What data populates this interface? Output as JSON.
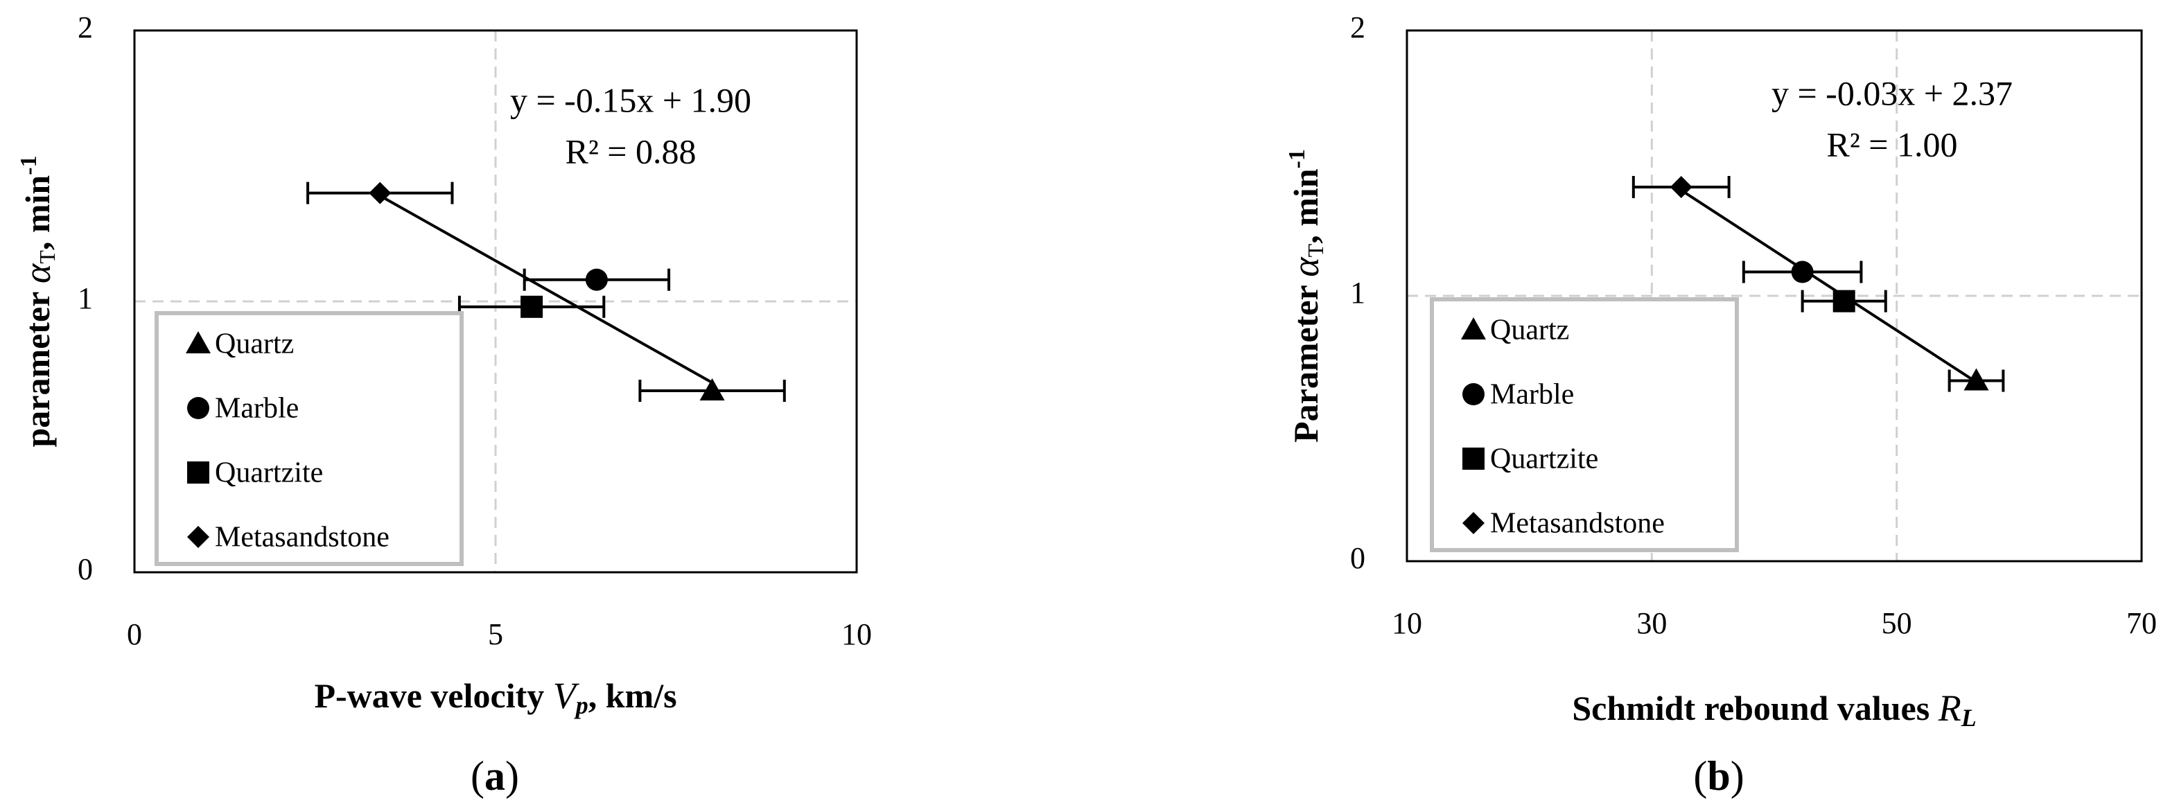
{
  "chart_data": [
    {
      "type": "scatter",
      "caption": "a",
      "xlabel": [
        "P-wave velocity ",
        "V",
        "p",
        ", km/s"
      ],
      "ylabel": [
        "parameter ",
        "α",
        "T",
        ", min",
        "-1"
      ],
      "xlim": [
        0,
        10
      ],
      "xticks": [
        0,
        5,
        10
      ],
      "ylim": [
        0,
        2
      ],
      "yticks": [
        0,
        1,
        2
      ],
      "grid": true,
      "legend": "lower left",
      "trendline": {
        "slope": -0.15,
        "intercept": 1.9,
        "equation": "y = -0.15x + 1.90",
        "r2": "R² = 0.88"
      },
      "series": [
        {
          "name": "Quartz",
          "marker": "triangle",
          "color": "#000000",
          "x": [
            8.0
          ],
          "y": [
            0.67
          ],
          "xerr": [
            1.0
          ]
        },
        {
          "name": "Marble",
          "marker": "circle",
          "color": "#000000",
          "x": [
            6.4
          ],
          "y": [
            1.08
          ],
          "xerr": [
            1.0
          ]
        },
        {
          "name": "Quartzite",
          "marker": "square",
          "color": "#000000",
          "x": [
            5.5
          ],
          "y": [
            0.98
          ],
          "xerr": [
            1.0
          ]
        },
        {
          "name": "Metasandstone",
          "marker": "diamond",
          "color": "#000000",
          "x": [
            3.4
          ],
          "y": [
            1.4
          ],
          "xerr": [
            1.0
          ]
        }
      ]
    },
    {
      "type": "scatter",
      "caption": "b",
      "xlabel": [
        "Schmidt rebound values ",
        "R",
        "L"
      ],
      "ylabel": [
        "Parameter ",
        "α",
        "T",
        ", min",
        "-1"
      ],
      "xlim": [
        10,
        70
      ],
      "xticks": [
        10,
        30,
        50,
        70
      ],
      "ylim": [
        0,
        2
      ],
      "yticks": [
        0,
        1,
        2
      ],
      "grid": true,
      "legend": "lower left",
      "trendline": {
        "slope": -0.03,
        "intercept": 2.37,
        "equation": "y = -0.03x + 2.37",
        "r2": "R² = 1.00"
      },
      "series": [
        {
          "name": "Quartz",
          "marker": "triangle",
          "color": "#000000",
          "x": [
            56.5
          ],
          "y": [
            0.68
          ],
          "xerr": [
            2.2
          ]
        },
        {
          "name": "Marble",
          "marker": "circle",
          "color": "#000000",
          "x": [
            42.3
          ],
          "y": [
            1.09
          ],
          "xerr": [
            4.8
          ]
        },
        {
          "name": "Quartzite",
          "marker": "square",
          "color": "#000000",
          "x": [
            45.7
          ],
          "y": [
            0.98
          ],
          "xerr": [
            3.4
          ]
        },
        {
          "name": "Metasandstone",
          "marker": "diamond",
          "color": "#000000",
          "x": [
            32.4
          ],
          "y": [
            1.41
          ],
          "xerr": [
            3.9
          ]
        }
      ]
    }
  ]
}
